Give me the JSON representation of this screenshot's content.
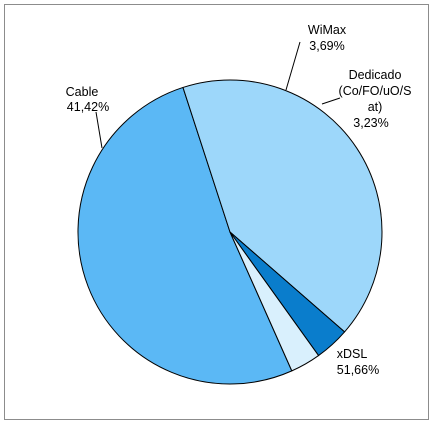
{
  "chart_data": {
    "type": "pie",
    "title": "",
    "slices": [
      {
        "label": "xDSL",
        "value": 51.66,
        "value_label": "51,66%",
        "color": "#5BB8F5"
      },
      {
        "label": "Cable",
        "value": 41.42,
        "value_label": "41,42%",
        "color": "#9DD7FA"
      },
      {
        "label": "WiMax",
        "value": 3.69,
        "value_label": "3,69%",
        "color": "#0A7DCC"
      },
      {
        "label_lines": [
          "Dedicado",
          "(Co/FO/uO/S",
          "at)"
        ],
        "label": "Dedicado (Co/FO/uO/S at)",
        "value": 3.23,
        "value_label": "3,23%",
        "color": "#D9F0FD"
      }
    ],
    "legend": "none",
    "slice_border_color": "#000000"
  }
}
